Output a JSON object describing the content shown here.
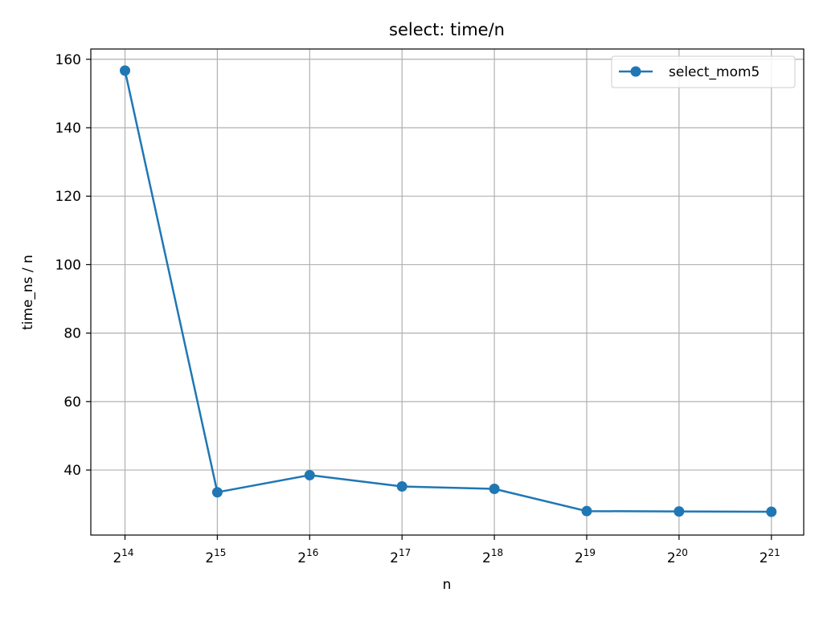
{
  "chart_data": {
    "type": "line",
    "title": "select: time/n",
    "xlabel": "n",
    "ylabel": "time_ns / n",
    "x_scale": "log2",
    "x": [
      16384,
      32768,
      65536,
      131072,
      262144,
      524288,
      1048576,
      2097152
    ],
    "x_tick_labels": [
      {
        "base": "2",
        "exp": "14"
      },
      {
        "base": "2",
        "exp": "15"
      },
      {
        "base": "2",
        "exp": "16"
      },
      {
        "base": "2",
        "exp": "17"
      },
      {
        "base": "2",
        "exp": "18"
      },
      {
        "base": "2",
        "exp": "19"
      },
      {
        "base": "2",
        "exp": "20"
      },
      {
        "base": "2",
        "exp": "21"
      }
    ],
    "y_ticks": [
      40,
      60,
      80,
      100,
      120,
      140,
      160
    ],
    "ylim": [
      21,
      163
    ],
    "grid": true,
    "legend_position": "top-right",
    "series": [
      {
        "name": "select_mom5",
        "color": "#1f77b4",
        "marker": "circle",
        "values": [
          156.7,
          33.5,
          38.5,
          35.2,
          34.5,
          28.0,
          27.9,
          27.8
        ]
      }
    ]
  }
}
